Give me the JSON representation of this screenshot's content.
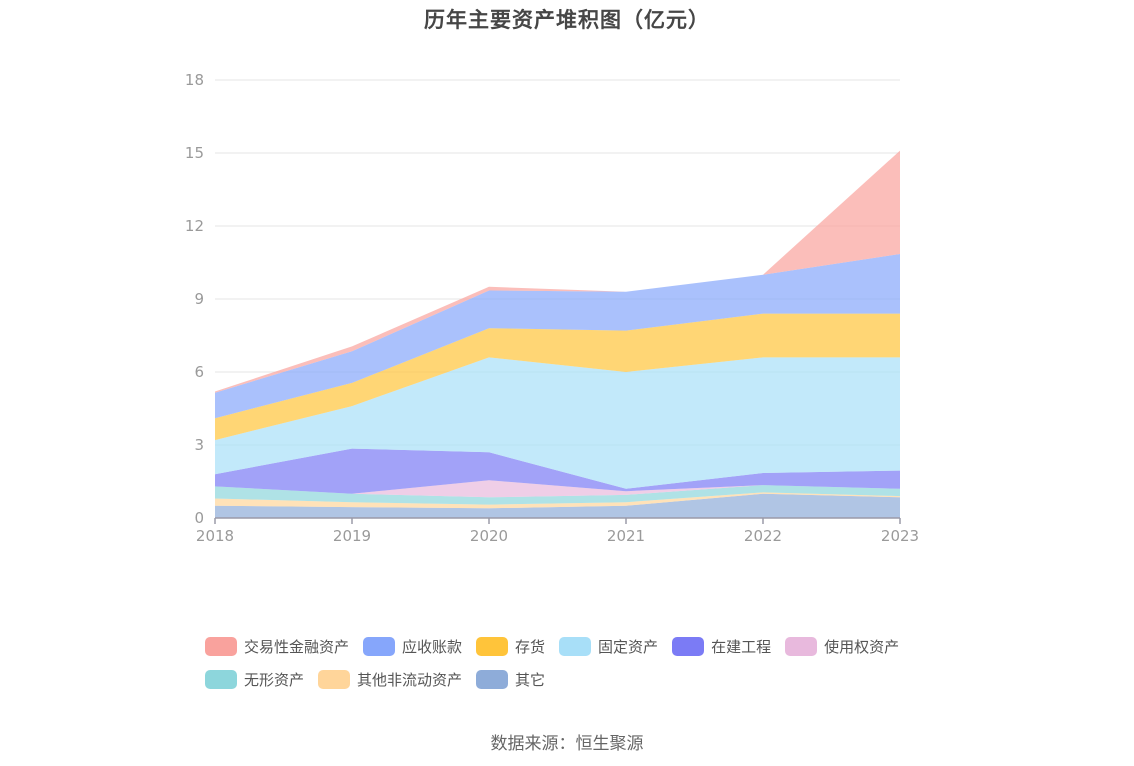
{
  "title": "历年主要资产堆积图（亿元）",
  "source": "数据来源：恒生聚源",
  "chart_data": {
    "type": "area",
    "stacked": true,
    "title": "历年主要资产堆积图（亿元）",
    "x": [
      "2018",
      "2019",
      "2020",
      "2021",
      "2022",
      "2023"
    ],
    "ylim": [
      0,
      18
    ],
    "yticks": [
      "0",
      "3",
      "6",
      "9",
      "12",
      "15",
      "18"
    ],
    "grid": true,
    "legend_position": "bottom",
    "series": [
      {
        "name": "其它",
        "color": "#8eacd9",
        "values": [
          0.5,
          0.45,
          0.4,
          0.5,
          1.0,
          0.85
        ]
      },
      {
        "name": "其他非流动资产",
        "color": "#ffd59a",
        "values": [
          0.3,
          0.2,
          0.15,
          0.15,
          0.05,
          0.05
        ]
      },
      {
        "name": "无形资产",
        "color": "#8dd6dc",
        "values": [
          0.5,
          0.35,
          0.3,
          0.3,
          0.3,
          0.3
        ]
      },
      {
        "name": "使用权资产",
        "color": "#e8b9dd",
        "values": [
          0.0,
          0.0,
          0.7,
          0.15,
          0.0,
          0.0
        ]
      },
      {
        "name": "在建工程",
        "color": "#7b7bf5",
        "values": [
          0.5,
          1.85,
          1.15,
          0.1,
          0.5,
          0.75
        ]
      },
      {
        "name": "固定资产",
        "color": "#a8dff8",
        "values": [
          1.4,
          1.75,
          3.9,
          4.8,
          4.75,
          4.65
        ]
      },
      {
        "name": "存货",
        "color": "#ffc43a",
        "values": [
          0.9,
          0.95,
          1.2,
          1.7,
          1.8,
          1.8
        ]
      },
      {
        "name": "应收账款",
        "color": "#86a6fb",
        "values": [
          1.05,
          1.3,
          1.55,
          1.6,
          1.6,
          2.45
        ]
      },
      {
        "name": "交易性金融资产",
        "color": "#f9a29d",
        "values": [
          0.05,
          0.2,
          0.15,
          0.0,
          0.0,
          4.25
        ]
      }
    ],
    "legend_order": [
      "交易性金融资产",
      "应收账款",
      "存货",
      "固定资产",
      "在建工程",
      "使用权资产",
      "无形资产",
      "其他非流动资产",
      "其它"
    ]
  }
}
